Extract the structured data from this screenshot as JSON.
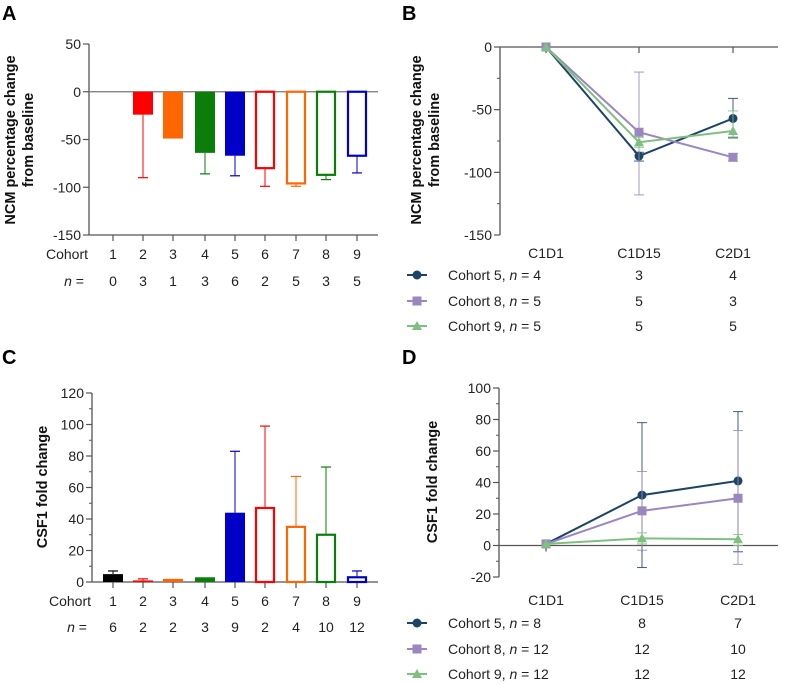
{
  "chart_data": [
    {
      "panel": "A",
      "type": "bar",
      "ylabel": [
        "NCM percentage change",
        "from baseline"
      ],
      "ylim": [
        -150,
        50
      ],
      "yticks": [
        50,
        0,
        -50,
        -100,
        -150
      ],
      "row_labels": {
        "cohort": "Cohort",
        "n_symbol": "n",
        "n_suffix": " ="
      },
      "categories": [
        "1",
        "2",
        "3",
        "4",
        "5",
        "6",
        "7",
        "8",
        "9"
      ],
      "n": [
        "0",
        "3",
        "1",
        "3",
        "6",
        "2",
        "5",
        "3",
        "5"
      ],
      "values": [
        null,
        -24,
        -49,
        -64,
        -67,
        -80,
        -96,
        -87,
        -67
      ],
      "error_end": [
        null,
        -90,
        null,
        -86,
        -88,
        -99,
        -99,
        -92,
        -85
      ],
      "colors": [
        "#000000",
        "#ff0000",
        "#ff6600",
        "#0a7d0a",
        "#0000c8",
        "#ff0000",
        "#ff6600",
        "#0a7d0a",
        "#0000c8"
      ],
      "filled": [
        true,
        true,
        true,
        true,
        true,
        false,
        false,
        false,
        false
      ]
    },
    {
      "panel": "B",
      "type": "line",
      "ylabel": [
        "NCM percentage change",
        "from baseline"
      ],
      "ylim": [
        -150,
        0
      ],
      "yticks": [
        0,
        -50,
        -100,
        -150
      ],
      "categories": [
        "C1D1",
        "C1D15",
        "C2D1"
      ],
      "series": [
        {
          "label_prefix": "Cohort 5, ",
          "n_symbol": "n",
          "label_suffix": " = 4",
          "marker": "circle",
          "color": "#1d4466",
          "values": [
            0,
            -87,
            -57
          ],
          "err_low": [
            0,
            -91,
            -72
          ],
          "err_high": [
            0,
            -84,
            -41
          ],
          "counts": [
            "3",
            "4"
          ]
        },
        {
          "label_prefix": "Cohort 8, ",
          "n_symbol": "n",
          "label_suffix": " = 5",
          "marker": "square",
          "color": "#9b87c0",
          "values": [
            0,
            -68,
            -88
          ],
          "err_low": [
            0,
            -118,
            -91
          ],
          "err_high": [
            0,
            -20,
            -85
          ],
          "counts": [
            "5",
            "3"
          ]
        },
        {
          "label_prefix": "Cohort 9, ",
          "n_symbol": "n",
          "label_suffix": " = 5",
          "marker": "triangle",
          "color": "#7fbf7f",
          "values": [
            0,
            -76,
            -67
          ],
          "err_low": [
            0,
            -80,
            -73
          ],
          "err_high": [
            0,
            -72,
            -51
          ],
          "counts": [
            "5",
            "5"
          ]
        }
      ]
    },
    {
      "panel": "C",
      "type": "bar",
      "ylabel": [
        "CSF1 fold change"
      ],
      "ylim": [
        0,
        120
      ],
      "yticks": [
        120,
        100,
        80,
        60,
        40,
        20,
        0
      ],
      "row_labels": {
        "cohort": "Cohort",
        "n_symbol": "n",
        "n_suffix": " ="
      },
      "categories": [
        "1",
        "2",
        "3",
        "4",
        "5",
        "6",
        "7",
        "8",
        "9"
      ],
      "n": [
        "6",
        "2",
        "2",
        "3",
        "9",
        "2",
        "4",
        "10",
        "12"
      ],
      "values": [
        5,
        1,
        2,
        3,
        44,
        47,
        35,
        30,
        3
      ],
      "error_end": [
        7,
        2,
        null,
        null,
        83,
        99,
        67,
        73,
        7
      ],
      "colors": [
        "#000000",
        "#ff0000",
        "#ff6600",
        "#0a7d0a",
        "#0000c8",
        "#ff0000",
        "#ff6600",
        "#0a7d0a",
        "#0000c8"
      ],
      "filled": [
        true,
        true,
        true,
        true,
        true,
        false,
        false,
        false,
        false
      ]
    },
    {
      "panel": "D",
      "type": "line",
      "ylabel": [
        "CSF1 fold change"
      ],
      "ylim": [
        -20,
        100
      ],
      "yticks": [
        100,
        80,
        60,
        40,
        20,
        0,
        -20
      ],
      "categories": [
        "C1D1",
        "C1D15",
        "C2D1"
      ],
      "series": [
        {
          "label_prefix": "Cohort 5, ",
          "n_symbol": "n",
          "label_suffix": " = 8",
          "marker": "circle",
          "color": "#1d4466",
          "values": [
            1,
            32,
            41
          ],
          "err_low": [
            1,
            -14,
            -4
          ],
          "err_high": [
            1,
            78,
            85
          ],
          "counts": [
            "8",
            "7"
          ]
        },
        {
          "label_prefix": "Cohort 8, ",
          "n_symbol": "n",
          "label_suffix": " = 12",
          "marker": "square",
          "color": "#9b87c0",
          "values": [
            1,
            22,
            30
          ],
          "err_low": [
            1,
            -3,
            -12
          ],
          "err_high": [
            1,
            47,
            73
          ],
          "counts": [
            "12",
            "10"
          ]
        },
        {
          "label_prefix": "Cohort 9, ",
          "n_symbol": "n",
          "label_suffix": " = 12",
          "marker": "triangle",
          "color": "#7fbf7f",
          "values": [
            1,
            4.5,
            4
          ],
          "err_low": [
            1,
            1,
            0
          ],
          "err_high": [
            1,
            8,
            7
          ],
          "counts": [
            "12",
            "12"
          ]
        }
      ]
    }
  ]
}
